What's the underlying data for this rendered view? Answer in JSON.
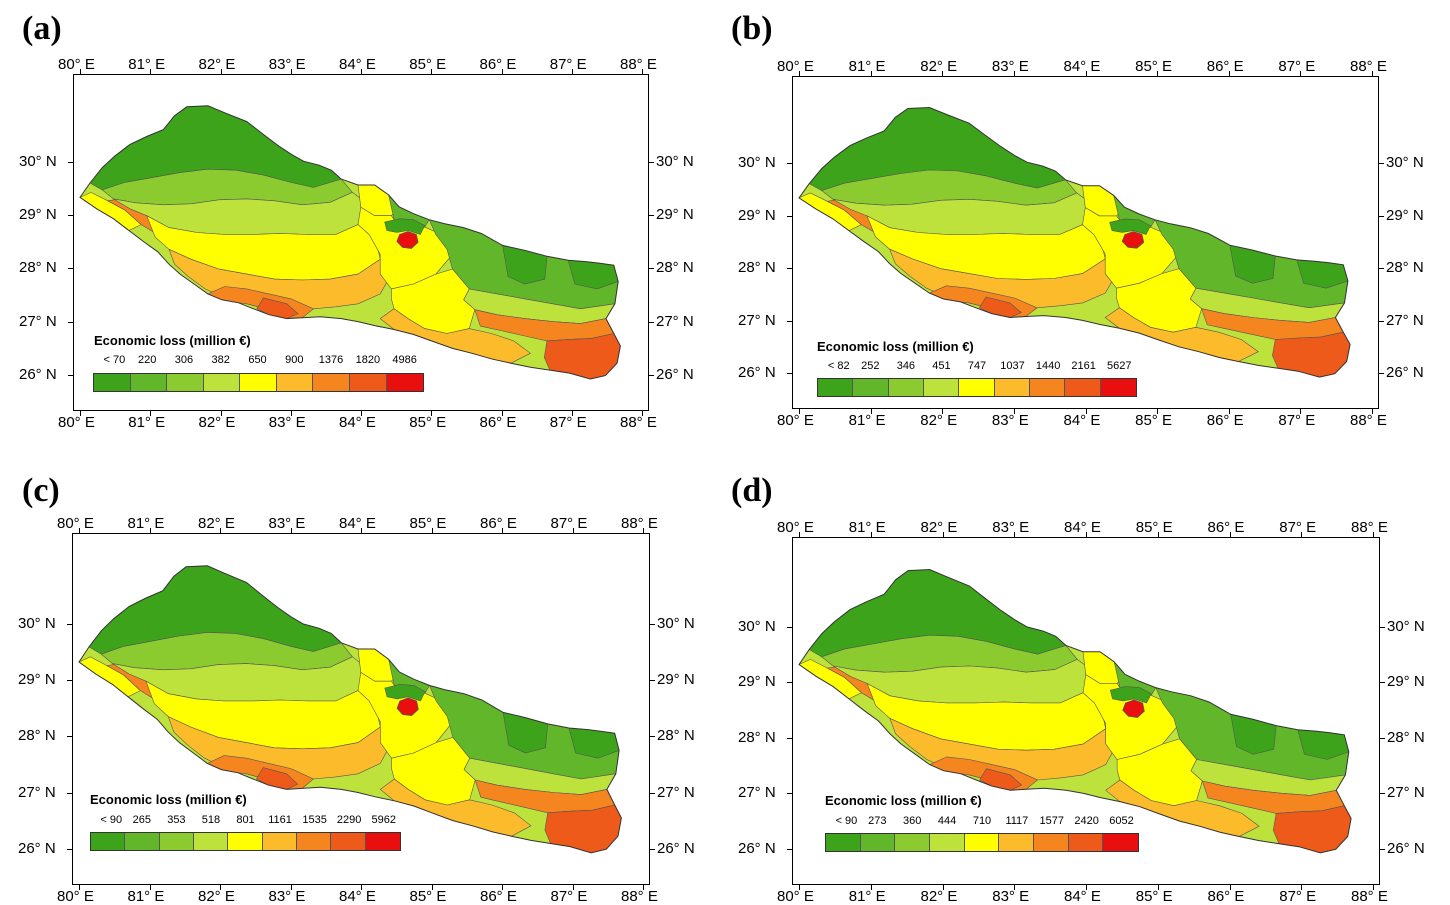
{
  "colors": [
    "#3ca31b",
    "#62b62a",
    "#8ccb2f",
    "#bee23c",
    "#ffff00",
    "#fbbb2a",
    "#f5861f",
    "#ee5a19",
    "#ea0f0f"
  ],
  "axes": {
    "lon_ticks": [
      "80° E",
      "81° E",
      "82° E",
      "83° E",
      "84° E",
      "85° E",
      "86° E",
      "87° E",
      "88° E"
    ],
    "lat_ticks": [
      "26° N",
      "27° N",
      "28° N",
      "29° N",
      "30° N"
    ]
  },
  "panels": [
    {
      "label": "(a)",
      "legend_title": "Economic  loss (million €)",
      "legend_values": [
        "< 70",
        "220",
        "306",
        "382",
        "650",
        "900",
        "1376",
        "1820",
        "4986"
      ],
      "hotspot_colors": {
        "west": "#f5861f",
        "central": "#ee5a19",
        "east": "#ee5a19",
        "mid_south": "#f5861f"
      }
    },
    {
      "label": "(b)",
      "legend_title": "Economic  loss (million €)",
      "legend_values": [
        "< 82",
        "252",
        "346",
        "451",
        "747",
        "1037",
        "1440",
        "2161",
        "5627"
      ],
      "hotspot_colors": {
        "west": "#f5861f",
        "central": "#ee5a19",
        "east": "#ee5a19",
        "mid_south": "#f5861f"
      }
    },
    {
      "label": "(c)",
      "legend_title": "Economic  loss (million €)",
      "legend_values": [
        "< 90",
        "265",
        "353",
        "518",
        "801",
        "1161",
        "1535",
        "2290",
        "5962"
      ],
      "hotspot_colors": {
        "west": "#f5861f",
        "central": "#ee5a19",
        "east": "#ee5a19",
        "mid_south": "#f5861f"
      }
    },
    {
      "label": "(d)",
      "legend_title": "Economic  loss (million €)",
      "legend_values": [
        "< 90",
        "273",
        "360",
        "444",
        "710",
        "1117",
        "1577",
        "2420",
        "6052"
      ],
      "hotspot_colors": {
        "west": "#f5861f",
        "central": "#ee5a19",
        "east": "#ee5a19",
        "mid_south": "#f5861f"
      }
    }
  ]
}
